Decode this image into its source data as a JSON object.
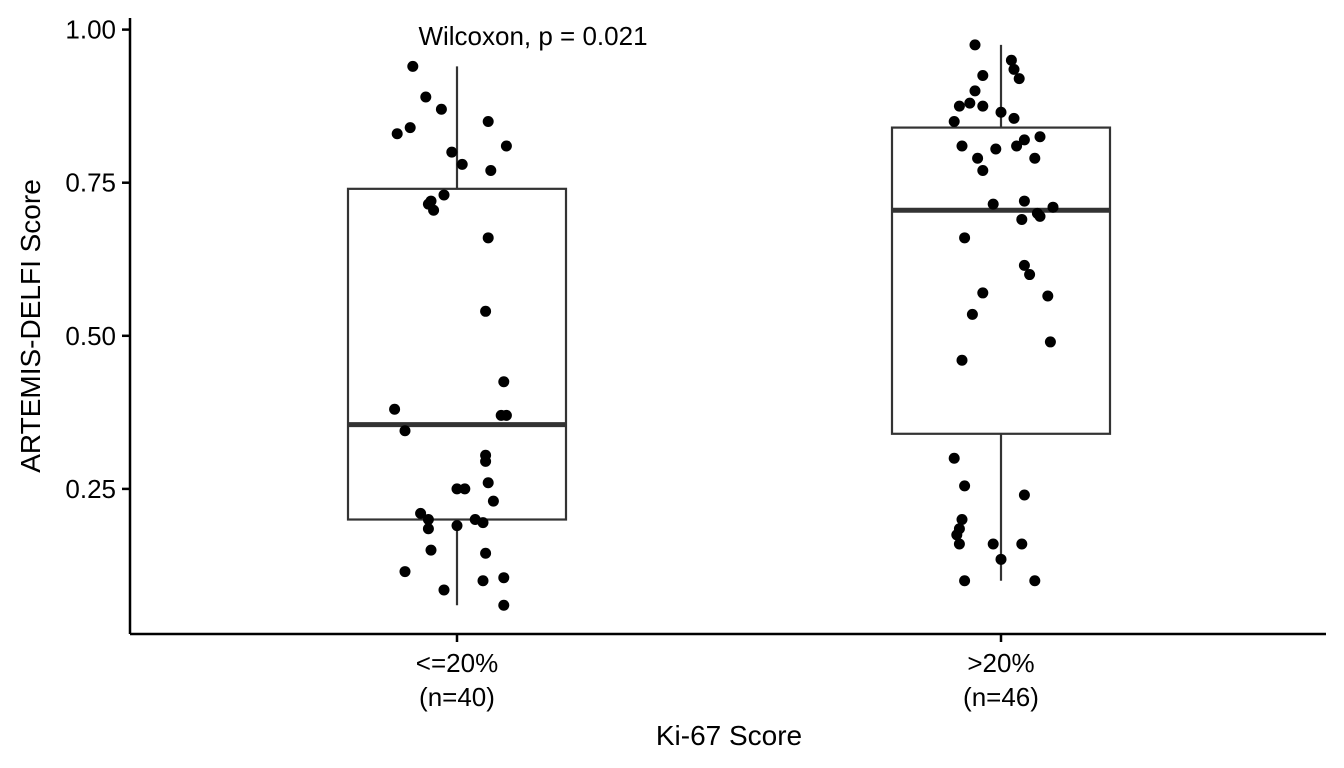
{
  "chart_data": {
    "type": "box",
    "title": "",
    "xlabel": "Ki-67 Score",
    "ylabel": "ARTEMIS-DELFI Score",
    "ylim": [
      0.0,
      1.0
    ],
    "yticks": [
      0.25,
      0.5,
      0.75,
      1.0
    ],
    "ytick_labels": [
      "0.25",
      "0.50",
      "0.75",
      "1.00"
    ],
    "grid": false,
    "legend": "none",
    "annotation": "Wilcoxon, p = 0.021",
    "colors": {
      "points": "#000000",
      "box": "#333333",
      "axis": "#000000"
    },
    "categories": [
      {
        "label_line1": "<=20%",
        "label_line2": "(n=40)",
        "box": {
          "min": 0.06,
          "q1": 0.2,
          "median": 0.355,
          "q3": 0.74,
          "max": 0.94
        },
        "points": [
          {
            "x": -0.17,
            "y": 0.94
          },
          {
            "x": -0.12,
            "y": 0.89
          },
          {
            "x": -0.06,
            "y": 0.87
          },
          {
            "x": -0.18,
            "y": 0.84
          },
          {
            "x": -0.23,
            "y": 0.83
          },
          {
            "x": 0.12,
            "y": 0.85
          },
          {
            "x": 0.19,
            "y": 0.81
          },
          {
            "x": -0.02,
            "y": 0.8
          },
          {
            "x": 0.02,
            "y": 0.78
          },
          {
            "x": 0.13,
            "y": 0.77
          },
          {
            "x": -0.05,
            "y": 0.73
          },
          {
            "x": -0.1,
            "y": 0.72
          },
          {
            "x": -0.11,
            "y": 0.715
          },
          {
            "x": -0.09,
            "y": 0.705
          },
          {
            "x": 0.12,
            "y": 0.66
          },
          {
            "x": 0.11,
            "y": 0.54
          },
          {
            "x": 0.18,
            "y": 0.425
          },
          {
            "x": -0.24,
            "y": 0.38
          },
          {
            "x": 0.17,
            "y": 0.37
          },
          {
            "x": 0.19,
            "y": 0.37
          },
          {
            "x": -0.2,
            "y": 0.345
          },
          {
            "x": 0.11,
            "y": 0.305
          },
          {
            "x": 0.11,
            "y": 0.295
          },
          {
            "x": 0.12,
            "y": 0.26
          },
          {
            "x": 0.0,
            "y": 0.25
          },
          {
            "x": 0.03,
            "y": 0.25
          },
          {
            "x": 0.14,
            "y": 0.23
          },
          {
            "x": -0.14,
            "y": 0.21
          },
          {
            "x": -0.11,
            "y": 0.2
          },
          {
            "x": 0.07,
            "y": 0.2
          },
          {
            "x": 0.1,
            "y": 0.195
          },
          {
            "x": 0.0,
            "y": 0.19
          },
          {
            "x": -0.11,
            "y": 0.185
          },
          {
            "x": -0.1,
            "y": 0.15
          },
          {
            "x": 0.11,
            "y": 0.145
          },
          {
            "x": -0.2,
            "y": 0.115
          },
          {
            "x": 0.18,
            "y": 0.105
          },
          {
            "x": 0.1,
            "y": 0.1
          },
          {
            "x": -0.05,
            "y": 0.085
          },
          {
            "x": 0.18,
            "y": 0.06
          }
        ]
      },
      {
        "label_line1": ">20%",
        "label_line2": "(n=46)",
        "box": {
          "min": 0.1,
          "q1": 0.34,
          "median": 0.705,
          "q3": 0.84,
          "max": 0.975
        },
        "points": [
          {
            "x": -0.1,
            "y": 0.975
          },
          {
            "x": 0.04,
            "y": 0.95
          },
          {
            "x": 0.05,
            "y": 0.935
          },
          {
            "x": -0.07,
            "y": 0.925
          },
          {
            "x": 0.07,
            "y": 0.92
          },
          {
            "x": -0.1,
            "y": 0.9
          },
          {
            "x": -0.12,
            "y": 0.88
          },
          {
            "x": -0.16,
            "y": 0.875
          },
          {
            "x": -0.07,
            "y": 0.875
          },
          {
            "x": 0.0,
            "y": 0.865
          },
          {
            "x": 0.05,
            "y": 0.855
          },
          {
            "x": -0.18,
            "y": 0.85
          },
          {
            "x": 0.15,
            "y": 0.825
          },
          {
            "x": 0.09,
            "y": 0.82
          },
          {
            "x": 0.06,
            "y": 0.81
          },
          {
            "x": -0.15,
            "y": 0.81
          },
          {
            "x": -0.02,
            "y": 0.805
          },
          {
            "x": 0.13,
            "y": 0.79
          },
          {
            "x": -0.09,
            "y": 0.79
          },
          {
            "x": -0.07,
            "y": 0.77
          },
          {
            "x": 0.09,
            "y": 0.72
          },
          {
            "x": -0.03,
            "y": 0.715
          },
          {
            "x": 0.2,
            "y": 0.71
          },
          {
            "x": 0.14,
            "y": 0.7
          },
          {
            "x": 0.15,
            "y": 0.695
          },
          {
            "x": 0.08,
            "y": 0.69
          },
          {
            "x": -0.14,
            "y": 0.66
          },
          {
            "x": 0.09,
            "y": 0.615
          },
          {
            "x": 0.11,
            "y": 0.6
          },
          {
            "x": -0.07,
            "y": 0.57
          },
          {
            "x": 0.18,
            "y": 0.565
          },
          {
            "x": -0.11,
            "y": 0.535
          },
          {
            "x": 0.19,
            "y": 0.49
          },
          {
            "x": -0.15,
            "y": 0.46
          },
          {
            "x": -0.18,
            "y": 0.3
          },
          {
            "x": -0.14,
            "y": 0.255
          },
          {
            "x": 0.09,
            "y": 0.24
          },
          {
            "x": -0.15,
            "y": 0.2
          },
          {
            "x": -0.16,
            "y": 0.185
          },
          {
            "x": -0.17,
            "y": 0.175
          },
          {
            "x": -0.16,
            "y": 0.16
          },
          {
            "x": -0.03,
            "y": 0.16
          },
          {
            "x": 0.08,
            "y": 0.16
          },
          {
            "x": 0.0,
            "y": 0.135
          },
          {
            "x": -0.14,
            "y": 0.1
          },
          {
            "x": 0.13,
            "y": 0.1
          }
        ]
      }
    ]
  }
}
